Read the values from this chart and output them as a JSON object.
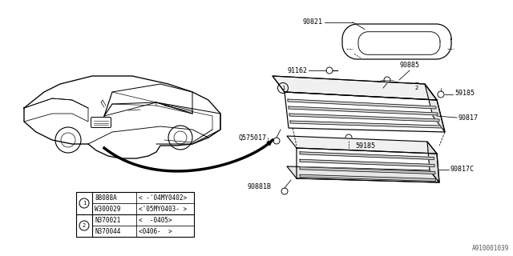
{
  "bg_color": "#ffffff",
  "line_color": "#000000",
  "part_numbers": {
    "top_duct": "90821",
    "clip1": "91162",
    "clip2": "90885",
    "bolt1": "59185",
    "bolt2": "59185",
    "grille_main": "90817",
    "grille_lower": "90817C",
    "nut": "Q575017",
    "bracket": "90881B"
  },
  "legend_rows": [
    [
      "1",
      "88088A",
      "< -'04MY0402>"
    ],
    [
      "1",
      "W300029",
      "<'05MY0403- >"
    ],
    [
      "2",
      "N370021",
      "<  -0405>"
    ],
    [
      "2",
      "N370044",
      "<0406-  >"
    ]
  ],
  "diagram_id": "A910001039"
}
